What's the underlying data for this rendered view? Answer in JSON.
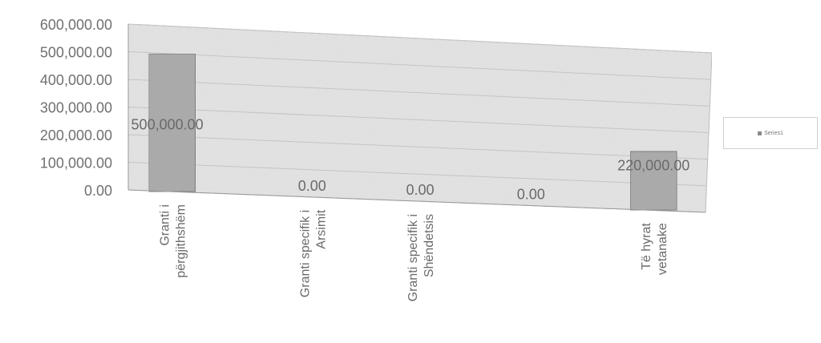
{
  "chart_data": {
    "type": "bar",
    "categories": [
      [
        "Granti i",
        "përgjithshëm"
      ],
      [
        "Granti specifik i",
        "Arsimit"
      ],
      [
        "Granti specifik i",
        "Shëndetsis"
      ],
      [
        "",
        ""
      ],
      [
        "Të hyrat",
        "vetanake"
      ]
    ],
    "series": [
      {
        "name": "Series1",
        "values": [
          500000,
          0,
          0,
          0,
          220000
        ],
        "data_labels": [
          "500,000.00",
          "0.00",
          "0.00",
          "0.00",
          "220,000.00"
        ]
      }
    ],
    "y_ticks": [
      "0.00",
      "100,000.00",
      "200,000.00",
      "300,000.00",
      "400,000.00",
      "500,000.00",
      "600,000.00"
    ],
    "ylim": [
      0,
      600000
    ],
    "grid": true,
    "legend_position": "right",
    "colors": {
      "bar": "#a9a9a9",
      "bar_stroke": "#6f6f6f",
      "plot_bg": "#e4e4e4",
      "grid": "#c4c4c4"
    }
  }
}
